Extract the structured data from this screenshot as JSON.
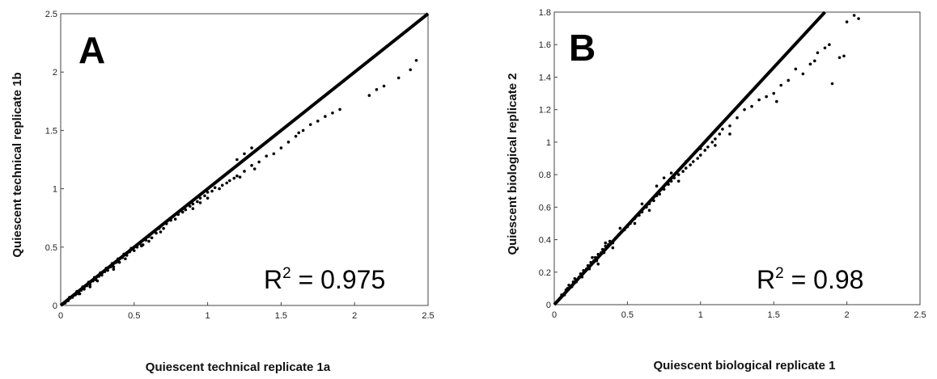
{
  "chart_data": [
    {
      "type": "scatter",
      "panel_label": "A",
      "xlabel": "Quiescent technical replicate 1a",
      "ylabel": "Quiescent technical replicate 1b",
      "xlim": [
        0,
        2.5
      ],
      "ylim": [
        0,
        2.5
      ],
      "xticks": [
        "0",
        "0.5",
        "1",
        "1.5",
        "2",
        "2.5"
      ],
      "yticks": [
        "0",
        "0.5",
        "1",
        "1.5",
        "2",
        "2.5"
      ],
      "xtick_values": [
        0,
        0.5,
        1,
        1.5,
        2,
        2.5
      ],
      "ytick_values": [
        0,
        0.5,
        1,
        1.5,
        2,
        2.5
      ],
      "annotation": {
        "base": "R",
        "sup": "2",
        "rest": " = 0.975"
      },
      "identity_line": {
        "from": [
          0,
          0
        ],
        "to": [
          2.5,
          2.5
        ]
      },
      "series": [
        {
          "points": [
            [
              0.03,
              0.02
            ],
            [
              0.05,
              0.04
            ],
            [
              0.06,
              0.07
            ],
            [
              0.08,
              0.07
            ],
            [
              0.1,
              0.09
            ],
            [
              0.11,
              0.12
            ],
            [
              0.12,
              0.1
            ],
            [
              0.14,
              0.13
            ],
            [
              0.15,
              0.16
            ],
            [
              0.16,
              0.14
            ],
            [
              0.18,
              0.17
            ],
            [
              0.19,
              0.2
            ],
            [
              0.2,
              0.18
            ],
            [
              0.22,
              0.21
            ],
            [
              0.23,
              0.24
            ],
            [
              0.24,
              0.22
            ],
            [
              0.26,
              0.25
            ],
            [
              0.27,
              0.28
            ],
            [
              0.28,
              0.26
            ],
            [
              0.3,
              0.29
            ],
            [
              0.31,
              0.32
            ],
            [
              0.32,
              0.3
            ],
            [
              0.34,
              0.33
            ],
            [
              0.35,
              0.36
            ],
            [
              0.36,
              0.33
            ],
            [
              0.38,
              0.37
            ],
            [
              0.39,
              0.4
            ],
            [
              0.4,
              0.37
            ],
            [
              0.42,
              0.41
            ],
            [
              0.43,
              0.44
            ],
            [
              0.45,
              0.43
            ],
            [
              0.47,
              0.46
            ],
            [
              0.48,
              0.49
            ],
            [
              0.5,
              0.47
            ],
            [
              0.52,
              0.5
            ],
            [
              0.54,
              0.53
            ],
            [
              0.56,
              0.52
            ],
            [
              0.58,
              0.56
            ],
            [
              0.6,
              0.59
            ],
            [
              0.62,
              0.58
            ],
            [
              0.65,
              0.62
            ],
            [
              0.67,
              0.66
            ],
            [
              0.7,
              0.66
            ],
            [
              0.72,
              0.7
            ],
            [
              0.75,
              0.73
            ],
            [
              0.78,
              0.74
            ],
            [
              0.8,
              0.78
            ],
            [
              0.83,
              0.8
            ],
            [
              0.85,
              0.82
            ],
            [
              0.88,
              0.85
            ],
            [
              0.9,
              0.87
            ],
            [
              0.93,
              0.89
            ],
            [
              0.95,
              0.92
            ],
            [
              0.98,
              0.94
            ],
            [
              1.0,
              0.97
            ],
            [
              1.03,
              0.98
            ],
            [
              1.05,
              1.01
            ],
            [
              1.08,
              1.0
            ],
            [
              1.1,
              1.03
            ],
            [
              1.13,
              1.05
            ],
            [
              1.15,
              1.07
            ],
            [
              1.18,
              1.09
            ],
            [
              1.2,
              1.11
            ],
            [
              1.25,
              1.15
            ],
            [
              1.3,
              1.2
            ],
            [
              1.35,
              1.23
            ],
            [
              1.4,
              1.28
            ],
            [
              1.45,
              1.3
            ],
            [
              1.5,
              1.35
            ],
            [
              1.55,
              1.4
            ],
            [
              1.6,
              1.45
            ],
            [
              1.62,
              1.48
            ],
            [
              1.65,
              1.5
            ],
            [
              1.7,
              1.55
            ],
            [
              1.75,
              1.58
            ],
            [
              1.8,
              1.62
            ],
            [
              1.85,
              1.65
            ],
            [
              1.9,
              1.68
            ],
            [
              2.1,
              1.8
            ],
            [
              2.15,
              1.85
            ],
            [
              2.2,
              1.88
            ],
            [
              2.3,
              1.95
            ],
            [
              2.38,
              2.02
            ],
            [
              2.42,
              2.1
            ],
            [
              1.2,
              1.25
            ],
            [
              1.3,
              1.35
            ],
            [
              1.25,
              1.3
            ],
            [
              1.22,
              1.1
            ],
            [
              1.32,
              1.17
            ],
            [
              0.9,
              0.83
            ],
            [
              0.95,
              0.88
            ],
            [
              1.0,
              0.92
            ],
            [
              0.6,
              0.55
            ],
            [
              0.68,
              0.63
            ],
            [
              0.55,
              0.51
            ],
            [
              0.44,
              0.4
            ],
            [
              0.36,
              0.31
            ],
            [
              0.25,
              0.21
            ],
            [
              0.2,
              0.16
            ],
            [
              0.13,
              0.1
            ]
          ]
        }
      ]
    },
    {
      "type": "scatter",
      "panel_label": "B",
      "xlabel": "Quiescent biological replicate 1",
      "ylabel": "Quiescent biological replicate 2",
      "xlim": [
        0,
        2.5
      ],
      "ylim": [
        0,
        1.8
      ],
      "xticks": [
        "0",
        "0.5",
        "1",
        "1.5",
        "2",
        "2.5"
      ],
      "yticks": [
        "0",
        "0.2",
        "0.4",
        "0.6",
        "0.8",
        "1",
        "1.2",
        "1.4",
        "1.6",
        "1.8"
      ],
      "xtick_values": [
        0,
        0.5,
        1,
        1.5,
        2,
        2.5
      ],
      "ytick_values": [
        0,
        0.2,
        0.4,
        0.6,
        0.8,
        1,
        1.2,
        1.4,
        1.6,
        1.8
      ],
      "annotation": {
        "base": "R",
        "sup": "2",
        "rest": " = 0.98"
      },
      "identity_line": {
        "from": [
          0,
          0
        ],
        "to": [
          1.85,
          1.8
        ]
      },
      "series": [
        {
          "points": [
            [
              0.02,
              0.02
            ],
            [
              0.04,
              0.04
            ],
            [
              0.05,
              0.06
            ],
            [
              0.07,
              0.06
            ],
            [
              0.08,
              0.09
            ],
            [
              0.09,
              0.1
            ],
            [
              0.1,
              0.12
            ],
            [
              0.12,
              0.11
            ],
            [
              0.13,
              0.14
            ],
            [
              0.14,
              0.16
            ],
            [
              0.15,
              0.14
            ],
            [
              0.17,
              0.17
            ],
            [
              0.18,
              0.19
            ],
            [
              0.19,
              0.17
            ],
            [
              0.2,
              0.21
            ],
            [
              0.22,
              0.22
            ],
            [
              0.23,
              0.24
            ],
            [
              0.24,
              0.22
            ],
            [
              0.25,
              0.26
            ],
            [
              0.27,
              0.27
            ],
            [
              0.28,
              0.29
            ],
            [
              0.29,
              0.27
            ],
            [
              0.3,
              0.31
            ],
            [
              0.32,
              0.32
            ],
            [
              0.33,
              0.34
            ],
            [
              0.34,
              0.32
            ],
            [
              0.35,
              0.36
            ],
            [
              0.37,
              0.37
            ],
            [
              0.38,
              0.39
            ],
            [
              0.4,
              0.38
            ],
            [
              0.42,
              0.41
            ],
            [
              0.44,
              0.43
            ],
            [
              0.46,
              0.45
            ],
            [
              0.48,
              0.46
            ],
            [
              0.5,
              0.48
            ],
            [
              0.52,
              0.5
            ],
            [
              0.55,
              0.53
            ],
            [
              0.58,
              0.55
            ],
            [
              0.6,
              0.57
            ],
            [
              0.63,
              0.6
            ],
            [
              0.65,
              0.62
            ],
            [
              0.68,
              0.64
            ],
            [
              0.7,
              0.67
            ],
            [
              0.72,
              0.68
            ],
            [
              0.75,
              0.71
            ],
            [
              0.78,
              0.74
            ],
            [
              0.8,
              0.76
            ],
            [
              0.82,
              0.78
            ],
            [
              0.85,
              0.8
            ],
            [
              0.88,
              0.82
            ],
            [
              0.9,
              0.84
            ],
            [
              0.93,
              0.86
            ],
            [
              0.95,
              0.88
            ],
            [
              0.98,
              0.9
            ],
            [
              1.0,
              0.92
            ],
            [
              1.03,
              0.95
            ],
            [
              1.05,
              0.97
            ],
            [
              1.08,
              1.0
            ],
            [
              1.1,
              1.02
            ],
            [
              1.13,
              1.05
            ],
            [
              1.15,
              1.08
            ],
            [
              1.2,
              1.1
            ],
            [
              1.25,
              1.15
            ],
            [
              1.3,
              1.2
            ],
            [
              1.35,
              1.22
            ],
            [
              1.4,
              1.26
            ],
            [
              1.45,
              1.28
            ],
            [
              1.5,
              1.3
            ],
            [
              1.52,
              1.25
            ],
            [
              1.55,
              1.35
            ],
            [
              1.6,
              1.38
            ],
            [
              1.65,
              1.45
            ],
            [
              1.7,
              1.42
            ],
            [
              1.75,
              1.48
            ],
            [
              1.78,
              1.5
            ],
            [
              1.8,
              1.55
            ],
            [
              1.85,
              1.58
            ],
            [
              1.88,
              1.6
            ],
            [
              1.9,
              1.36
            ],
            [
              1.95,
              1.52
            ],
            [
              2.0,
              1.74
            ],
            [
              2.05,
              1.78
            ],
            [
              2.08,
              1.76
            ],
            [
              1.98,
              1.53
            ],
            [
              0.75,
              0.78
            ],
            [
              0.7,
              0.73
            ],
            [
              0.8,
              0.81
            ],
            [
              0.6,
              0.62
            ],
            [
              0.9,
              0.88
            ],
            [
              1.0,
              0.96
            ],
            [
              0.45,
              0.47
            ],
            [
              0.35,
              0.38
            ],
            [
              0.26,
              0.29
            ],
            [
              0.3,
              0.25
            ],
            [
              0.4,
              0.35
            ],
            [
              0.55,
              0.5
            ],
            [
              0.65,
              0.58
            ],
            [
              0.85,
              0.76
            ],
            [
              1.1,
              0.98
            ],
            [
              1.2,
              1.05
            ]
          ]
        }
      ]
    }
  ]
}
